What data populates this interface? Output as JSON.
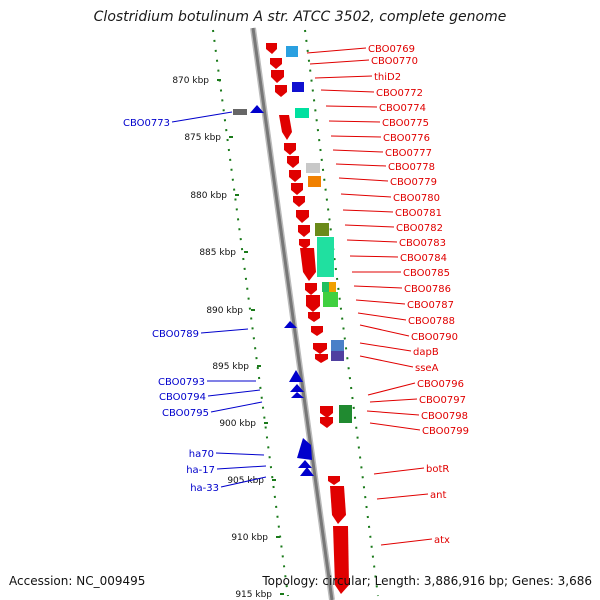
{
  "title": "Clostridium botulinum A str. ATCC 3502, complete genome",
  "accession": "Accession: NC_009495",
  "stats": "Topology: circular; Length: 3,886,916 bp; Genes: 3,686",
  "colors": {
    "forward": "#e00000",
    "reverse": "#0000cc",
    "ruler": "#1a7a1a",
    "axis": "#888888"
  },
  "kbp_ticks": [
    "870 kbp",
    "875 kbp",
    "880 kbp",
    "885 kbp",
    "890 kbp",
    "895 kbp",
    "900 kbp",
    "905 kbp",
    "910 kbp",
    "915 kbp"
  ],
  "forward_genes": [
    "CBO0769",
    "CBO0770",
    "thiD2",
    "CBO0772",
    "CBO0774",
    "CBO0775",
    "CBO0776",
    "CBO0777",
    "CBO0778",
    "CBO0779",
    "CBO0780",
    "CBO0781",
    "CBO0782",
    "CBO0783",
    "CBO0784",
    "CBO0785",
    "CBO0786",
    "CBO0787",
    "CBO0788",
    "CBO0790",
    "dapB",
    "sseA",
    "CBO0796",
    "CBO0797",
    "CBO0798",
    "CBO0799",
    "botR",
    "ant",
    "atx"
  ],
  "reverse_genes": [
    "CBO0773",
    "CBO0789",
    "CBO0793",
    "CBO0794",
    "CBO0795",
    "ha70",
    "ha-17",
    "ha-33"
  ]
}
